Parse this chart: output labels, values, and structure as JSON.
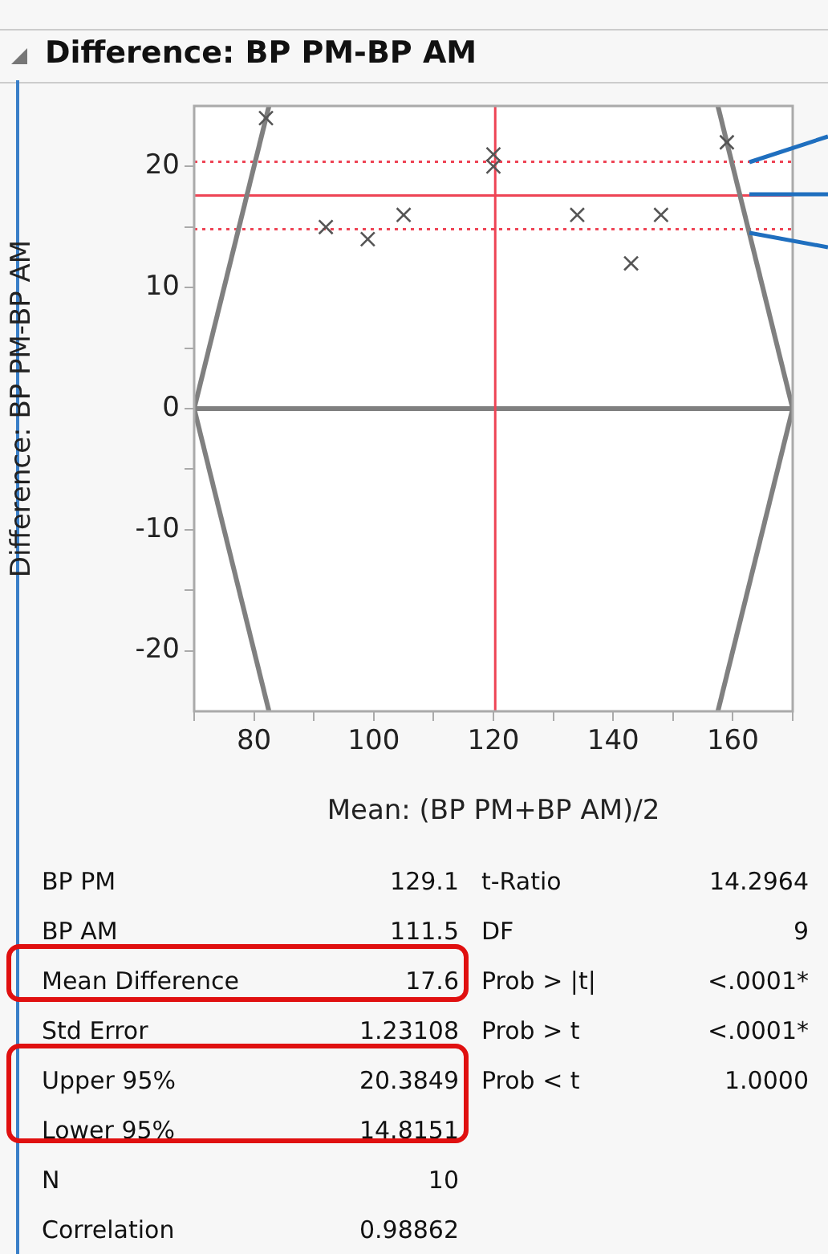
{
  "chart_data": {
    "type": "scatter",
    "title": "Difference: BP PM-BP AM",
    "xlabel": "Mean: (BP PM+BP AM)/2",
    "ylabel": "Difference: BP PM-BP AM",
    "xlim": [
      70,
      170
    ],
    "xticks": [
      {
        "value": 70,
        "label": null
      },
      80,
      {
        "value": 90,
        "label": null
      },
      100,
      {
        "value": 110,
        "label": null
      },
      120,
      {
        "value": 130,
        "label": null
      },
      140,
      {
        "value": 150,
        "label": null
      },
      160,
      {
        "value": 170,
        "label": null
      }
    ],
    "ylim": [
      -25,
      25
    ],
    "yticks": [
      -20,
      {
        "value": -15,
        "label": null
      },
      -10,
      {
        "value": -5,
        "label": null
      },
      0,
      {
        "value": 5,
        "label": null
      },
      10,
      {
        "value": 15,
        "label": null
      },
      20
    ],
    "grid": false,
    "legend": false,
    "series": [
      {
        "marker": "cross",
        "color": "#555555",
        "x": [
          82,
          92,
          99,
          105,
          120,
          120,
          134,
          143,
          148,
          159
        ],
        "values": [
          24,
          15,
          14,
          16,
          21,
          20,
          16,
          12,
          16,
          22
        ]
      },
      {
        "type": "line",
        "color": "#808080",
        "x": [
          70,
          82.5
        ],
        "values": [
          0,
          25
        ]
      },
      {
        "type": "line",
        "color": "#808080",
        "x": [
          70,
          82.5
        ],
        "values": [
          0,
          -25
        ]
      },
      {
        "type": "line",
        "color": "#808080",
        "x": [
          157.5,
          170
        ],
        "values": [
          25,
          0
        ]
      },
      {
        "type": "line",
        "color": "#808080",
        "x": [
          157.5,
          170
        ],
        "values": [
          -25,
          0
        ]
      }
    ],
    "ref_lines": [
      {
        "axis": "y",
        "value": 0,
        "color": "#808080",
        "line_style": "solid"
      },
      {
        "axis": "y",
        "value": 17.6,
        "color": "#ee4455",
        "line_style": "solid"
      },
      {
        "axis": "y",
        "value": 20.3849,
        "color": "#ee4455",
        "line_style": "dotted"
      },
      {
        "axis": "y",
        "value": 14.8151,
        "color": "#ee4455",
        "line_style": "dotted"
      },
      {
        "axis": "x",
        "value": 120.3,
        "color": "#ee4455",
        "line_style": "solid"
      }
    ],
    "annotations": [
      "BP PM",
      "129.1",
      "BP AM",
      "111.5",
      "Mean Difference",
      "17.6",
      "Std Error",
      "1.23108",
      "Upper 95%",
      "20.3849",
      "Lower 95%",
      "14.8151",
      "N",
      "10",
      "Correlation",
      "0.98862",
      "t-Ratio",
      "14.2964",
      "DF",
      "9",
      "Prob > |t|",
      "<.0001*",
      "Prob > t",
      "<.0001*",
      "Prob < t",
      "1.0000"
    ]
  }
}
